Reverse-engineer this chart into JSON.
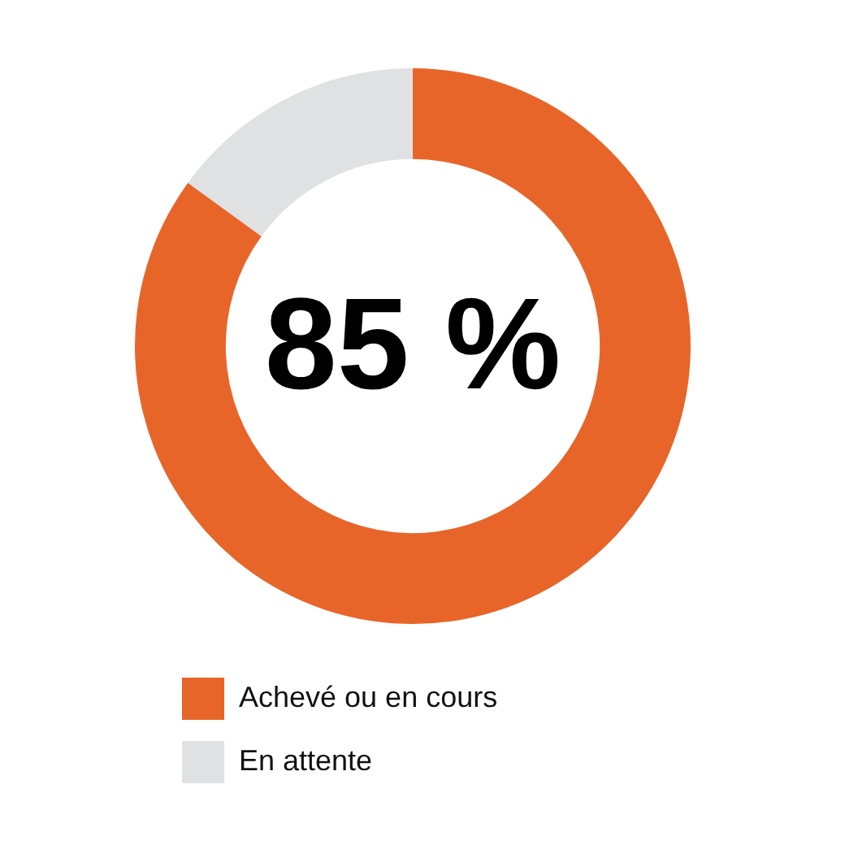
{
  "chart_data": {
    "type": "donut",
    "categories": [
      "Achevé ou en cours",
      "En attente"
    ],
    "values": [
      85,
      15
    ],
    "colors": [
      "#e8652a",
      "#e0e1e3"
    ],
    "legend": "bottom left",
    "annotations": [
      "85 %"
    ]
  }
}
